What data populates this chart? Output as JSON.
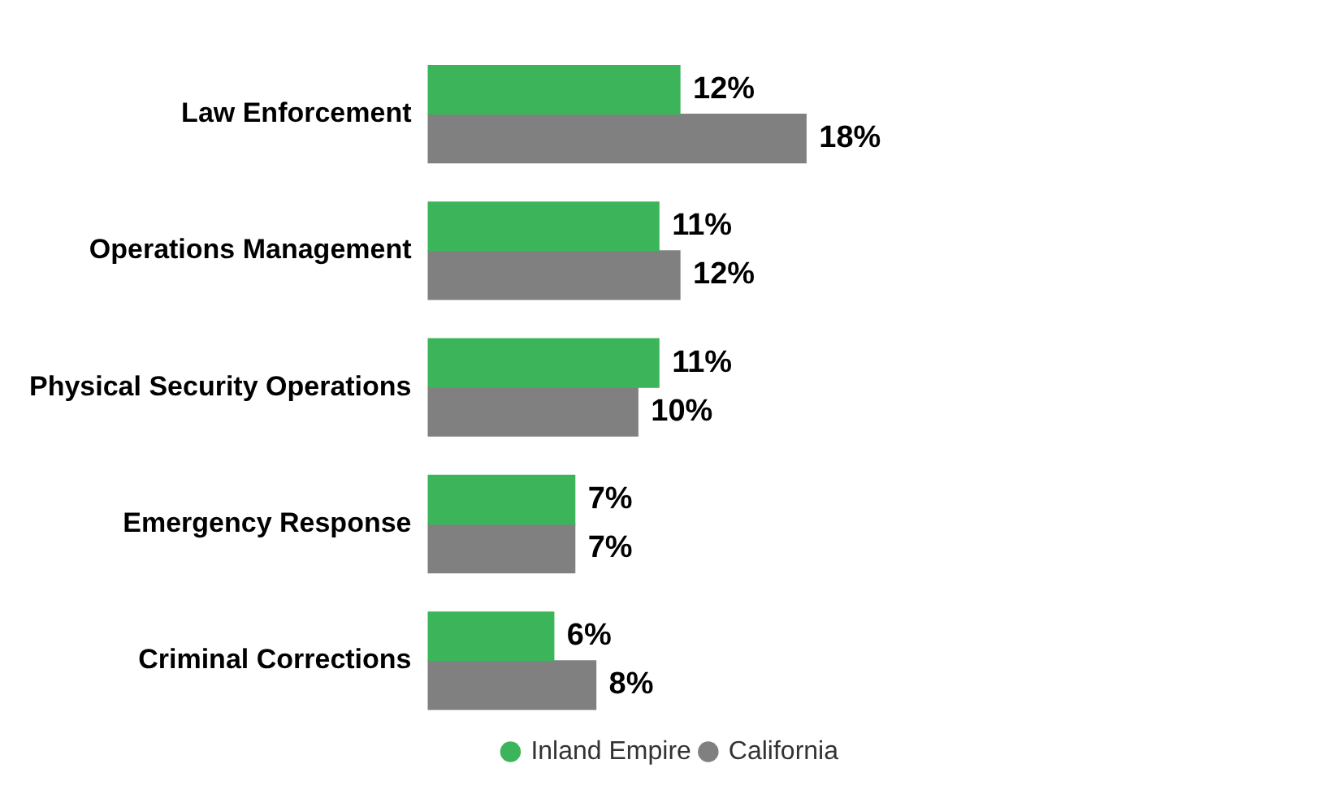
{
  "chart_data": {
    "type": "bar",
    "orientation": "horizontal",
    "categories": [
      "Law Enforcement",
      "Operations Management",
      "Physical Security Operations",
      "Emergency Response",
      "Criminal Corrections"
    ],
    "series": [
      {
        "name": "Inland Empire",
        "color": "#3cb55a",
        "values": [
          12,
          11,
          11,
          7,
          6
        ],
        "value_labels": [
          "12%",
          "11%",
          "11%",
          "7%",
          "6%"
        ]
      },
      {
        "name": "California",
        "color": "#808080",
        "values": [
          18,
          12,
          10,
          7,
          8
        ],
        "value_labels": [
          "18%",
          "12%",
          "10%",
          "7%",
          "8%"
        ]
      }
    ],
    "legend": "bottom right",
    "grid": false,
    "tick_labels": "y"
  }
}
